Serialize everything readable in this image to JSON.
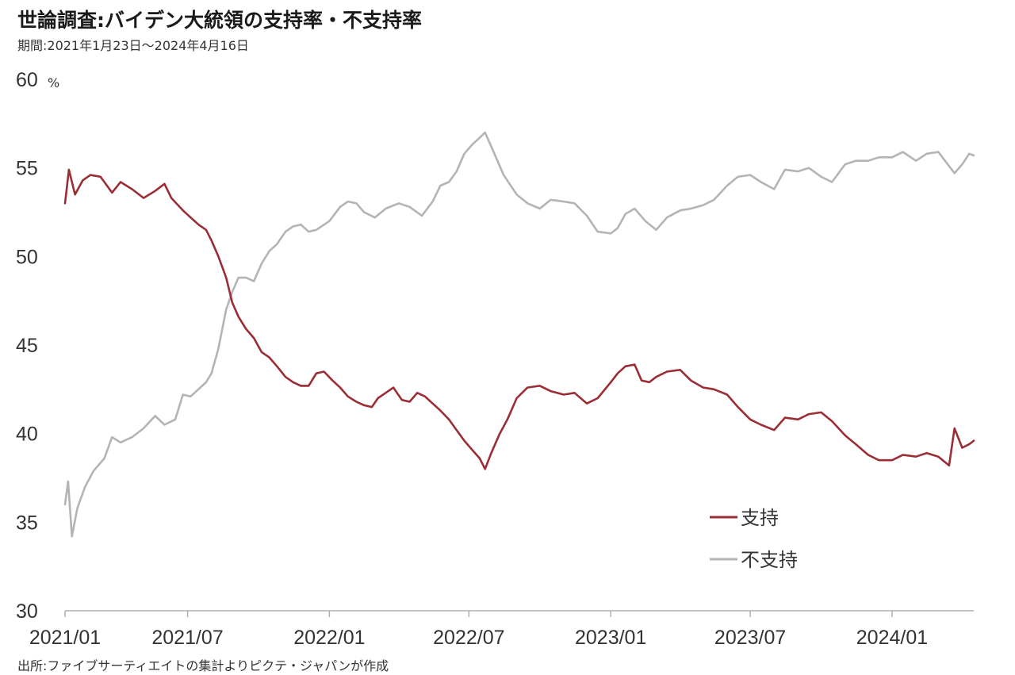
{
  "header": {
    "title": "世論調査:バイデン大統領の支持率・不支持率",
    "subtitle": "期間:2021年1月23日～2024年4月16日"
  },
  "footer": {
    "source": "出所:ファイブサーティエイトの集計よりピクテ・ジャパンが作成"
  },
  "chart_data": {
    "type": "line",
    "title": "世論調査:バイデン大統領の支持率・不支持率",
    "subtitle": "期間:2021年1月23日～2024年4月16日",
    "y_unit": "%",
    "ylim": [
      30,
      60
    ],
    "yticks": [
      30,
      35,
      40,
      45,
      50,
      55,
      60
    ],
    "xlim": [
      "2021-01-23",
      "2024-04-16"
    ],
    "xticks": [
      {
        "date": "2021-01-23",
        "label": "2021/01"
      },
      {
        "date": "2021-07-01",
        "label": "2021/07"
      },
      {
        "date": "2022-01-01",
        "label": "2022/01"
      },
      {
        "date": "2022-07-01",
        "label": "2022/07"
      },
      {
        "date": "2023-01-01",
        "label": "2023/01"
      },
      {
        "date": "2023-07-01",
        "label": "2023/07"
      },
      {
        "date": "2024-01-01",
        "label": "2024/01"
      }
    ],
    "grid": false,
    "legend_position": "bottom-right",
    "series": [
      {
        "name": "支持",
        "color": "#9b2d35",
        "points": [
          [
            "2021-01-23",
            53.0
          ],
          [
            "2021-01-28",
            54.9
          ],
          [
            "2021-02-05",
            53.5
          ],
          [
            "2021-02-15",
            54.3
          ],
          [
            "2021-02-25",
            54.6
          ],
          [
            "2021-03-10",
            54.5
          ],
          [
            "2021-03-25",
            53.6
          ],
          [
            "2021-04-05",
            54.2
          ],
          [
            "2021-04-20",
            53.8
          ],
          [
            "2021-05-05",
            53.3
          ],
          [
            "2021-05-20",
            53.7
          ],
          [
            "2021-06-01",
            54.1
          ],
          [
            "2021-06-10",
            53.3
          ],
          [
            "2021-06-25",
            52.6
          ],
          [
            "2021-07-05",
            52.2
          ],
          [
            "2021-07-15",
            51.8
          ],
          [
            "2021-07-25",
            51.5
          ],
          [
            "2021-08-01",
            50.9
          ],
          [
            "2021-08-10",
            50.0
          ],
          [
            "2021-08-20",
            48.8
          ],
          [
            "2021-08-28",
            47.4
          ],
          [
            "2021-09-05",
            46.6
          ],
          [
            "2021-09-15",
            45.9
          ],
          [
            "2021-09-25",
            45.4
          ],
          [
            "2021-10-05",
            44.6
          ],
          [
            "2021-10-15",
            44.3
          ],
          [
            "2021-10-25",
            43.8
          ],
          [
            "2021-11-05",
            43.2
          ],
          [
            "2021-11-15",
            42.9
          ],
          [
            "2021-11-25",
            42.7
          ],
          [
            "2021-12-05",
            42.7
          ],
          [
            "2021-12-15",
            43.4
          ],
          [
            "2021-12-25",
            43.5
          ],
          [
            "2022-01-05",
            43.0
          ],
          [
            "2022-01-15",
            42.6
          ],
          [
            "2022-01-25",
            42.1
          ],
          [
            "2022-02-05",
            41.8
          ],
          [
            "2022-02-15",
            41.6
          ],
          [
            "2022-02-25",
            41.5
          ],
          [
            "2022-03-05",
            42.0
          ],
          [
            "2022-03-15",
            42.3
          ],
          [
            "2022-03-25",
            42.6
          ],
          [
            "2022-04-05",
            41.9
          ],
          [
            "2022-04-15",
            41.8
          ],
          [
            "2022-04-25",
            42.3
          ],
          [
            "2022-05-05",
            42.1
          ],
          [
            "2022-05-15",
            41.7
          ],
          [
            "2022-05-25",
            41.3
          ],
          [
            "2022-06-05",
            40.8
          ],
          [
            "2022-06-15",
            40.2
          ],
          [
            "2022-06-25",
            39.6
          ],
          [
            "2022-07-05",
            39.1
          ],
          [
            "2022-07-15",
            38.6
          ],
          [
            "2022-07-22",
            38.0
          ],
          [
            "2022-07-30",
            38.9
          ],
          [
            "2022-08-10",
            40.0
          ],
          [
            "2022-08-20",
            40.8
          ],
          [
            "2022-09-01",
            42.0
          ],
          [
            "2022-09-15",
            42.6
          ],
          [
            "2022-10-01",
            42.7
          ],
          [
            "2022-10-15",
            42.4
          ],
          [
            "2022-11-01",
            42.2
          ],
          [
            "2022-11-15",
            42.3
          ],
          [
            "2022-12-01",
            41.7
          ],
          [
            "2022-12-15",
            42.0
          ],
          [
            "2023-01-01",
            42.9
          ],
          [
            "2023-01-10",
            43.4
          ],
          [
            "2023-01-20",
            43.8
          ],
          [
            "2023-02-01",
            43.9
          ],
          [
            "2023-02-10",
            43.0
          ],
          [
            "2023-02-20",
            42.9
          ],
          [
            "2023-03-01",
            43.2
          ],
          [
            "2023-03-15",
            43.5
          ],
          [
            "2023-04-01",
            43.6
          ],
          [
            "2023-04-15",
            43.0
          ],
          [
            "2023-05-01",
            42.6
          ],
          [
            "2023-05-15",
            42.5
          ],
          [
            "2023-06-01",
            42.2
          ],
          [
            "2023-06-15",
            41.5
          ],
          [
            "2023-07-01",
            40.8
          ],
          [
            "2023-07-15",
            40.5
          ],
          [
            "2023-08-01",
            40.2
          ],
          [
            "2023-08-15",
            40.9
          ],
          [
            "2023-09-01",
            40.8
          ],
          [
            "2023-09-15",
            41.1
          ],
          [
            "2023-10-01",
            41.2
          ],
          [
            "2023-10-15",
            40.7
          ],
          [
            "2023-11-01",
            39.9
          ],
          [
            "2023-11-15",
            39.4
          ],
          [
            "2023-12-01",
            38.8
          ],
          [
            "2023-12-15",
            38.5
          ],
          [
            "2024-01-01",
            38.5
          ],
          [
            "2024-01-15",
            38.8
          ],
          [
            "2024-02-01",
            38.7
          ],
          [
            "2024-02-15",
            38.9
          ],
          [
            "2024-03-01",
            38.7
          ],
          [
            "2024-03-15",
            38.2
          ],
          [
            "2024-03-22",
            40.3
          ],
          [
            "2024-04-01",
            39.2
          ],
          [
            "2024-04-10",
            39.4
          ],
          [
            "2024-04-16",
            39.6
          ]
        ]
      },
      {
        "name": "不支持",
        "color": "#b4b4b4",
        "points": [
          [
            "2021-01-23",
            36.0
          ],
          [
            "2021-01-27",
            37.3
          ],
          [
            "2021-02-01",
            34.2
          ],
          [
            "2021-02-08",
            35.8
          ],
          [
            "2021-02-18",
            37.0
          ],
          [
            "2021-03-01",
            37.9
          ],
          [
            "2021-03-15",
            38.6
          ],
          [
            "2021-03-25",
            39.8
          ],
          [
            "2021-04-05",
            39.5
          ],
          [
            "2021-04-20",
            39.8
          ],
          [
            "2021-05-05",
            40.3
          ],
          [
            "2021-05-20",
            41.0
          ],
          [
            "2021-06-01",
            40.5
          ],
          [
            "2021-06-15",
            40.8
          ],
          [
            "2021-06-25",
            42.2
          ],
          [
            "2021-07-05",
            42.1
          ],
          [
            "2021-07-15",
            42.5
          ],
          [
            "2021-07-25",
            42.9
          ],
          [
            "2021-08-01",
            43.4
          ],
          [
            "2021-08-10",
            44.8
          ],
          [
            "2021-08-20",
            47.0
          ],
          [
            "2021-08-28",
            48.0
          ],
          [
            "2021-09-05",
            48.8
          ],
          [
            "2021-09-15",
            48.8
          ],
          [
            "2021-09-25",
            48.6
          ],
          [
            "2021-10-05",
            49.6
          ],
          [
            "2021-10-15",
            50.3
          ],
          [
            "2021-10-25",
            50.7
          ],
          [
            "2021-11-05",
            51.4
          ],
          [
            "2021-11-15",
            51.7
          ],
          [
            "2021-11-25",
            51.8
          ],
          [
            "2021-12-05",
            51.4
          ],
          [
            "2021-12-15",
            51.5
          ],
          [
            "2022-01-01",
            52.0
          ],
          [
            "2022-01-15",
            52.8
          ],
          [
            "2022-01-25",
            53.1
          ],
          [
            "2022-02-05",
            53.0
          ],
          [
            "2022-02-15",
            52.5
          ],
          [
            "2022-03-01",
            52.2
          ],
          [
            "2022-03-15",
            52.7
          ],
          [
            "2022-04-01",
            53.0
          ],
          [
            "2022-04-15",
            52.8
          ],
          [
            "2022-05-01",
            52.3
          ],
          [
            "2022-05-15",
            53.1
          ],
          [
            "2022-05-25",
            54.0
          ],
          [
            "2022-06-05",
            54.2
          ],
          [
            "2022-06-15",
            54.8
          ],
          [
            "2022-06-25",
            55.8
          ],
          [
            "2022-07-05",
            56.3
          ],
          [
            "2022-07-15",
            56.7
          ],
          [
            "2022-07-22",
            57.0
          ],
          [
            "2022-08-01",
            56.0
          ],
          [
            "2022-08-15",
            54.6
          ],
          [
            "2022-09-01",
            53.5
          ],
          [
            "2022-09-15",
            53.0
          ],
          [
            "2022-10-01",
            52.7
          ],
          [
            "2022-10-15",
            53.2
          ],
          [
            "2022-11-01",
            53.1
          ],
          [
            "2022-11-15",
            53.0
          ],
          [
            "2022-12-01",
            52.3
          ],
          [
            "2022-12-15",
            51.4
          ],
          [
            "2023-01-01",
            51.3
          ],
          [
            "2023-01-10",
            51.6
          ],
          [
            "2023-01-20",
            52.4
          ],
          [
            "2023-02-01",
            52.7
          ],
          [
            "2023-02-15",
            52.0
          ],
          [
            "2023-03-01",
            51.5
          ],
          [
            "2023-03-15",
            52.2
          ],
          [
            "2023-04-01",
            52.6
          ],
          [
            "2023-04-15",
            52.7
          ],
          [
            "2023-05-01",
            52.9
          ],
          [
            "2023-05-15",
            53.2
          ],
          [
            "2023-06-01",
            54.0
          ],
          [
            "2023-06-15",
            54.5
          ],
          [
            "2023-07-01",
            54.6
          ],
          [
            "2023-07-15",
            54.2
          ],
          [
            "2023-08-01",
            53.8
          ],
          [
            "2023-08-15",
            54.9
          ],
          [
            "2023-09-01",
            54.8
          ],
          [
            "2023-09-15",
            55.0
          ],
          [
            "2023-10-01",
            54.5
          ],
          [
            "2023-10-15",
            54.2
          ],
          [
            "2023-11-01",
            55.2
          ],
          [
            "2023-11-15",
            55.4
          ],
          [
            "2023-12-01",
            55.4
          ],
          [
            "2023-12-15",
            55.6
          ],
          [
            "2024-01-01",
            55.6
          ],
          [
            "2024-01-15",
            55.9
          ],
          [
            "2024-02-01",
            55.4
          ],
          [
            "2024-02-15",
            55.8
          ],
          [
            "2024-03-01",
            55.9
          ],
          [
            "2024-03-15",
            55.1
          ],
          [
            "2024-03-22",
            54.7
          ],
          [
            "2024-04-01",
            55.2
          ],
          [
            "2024-04-10",
            55.8
          ],
          [
            "2024-04-16",
            55.7
          ]
        ]
      }
    ]
  }
}
